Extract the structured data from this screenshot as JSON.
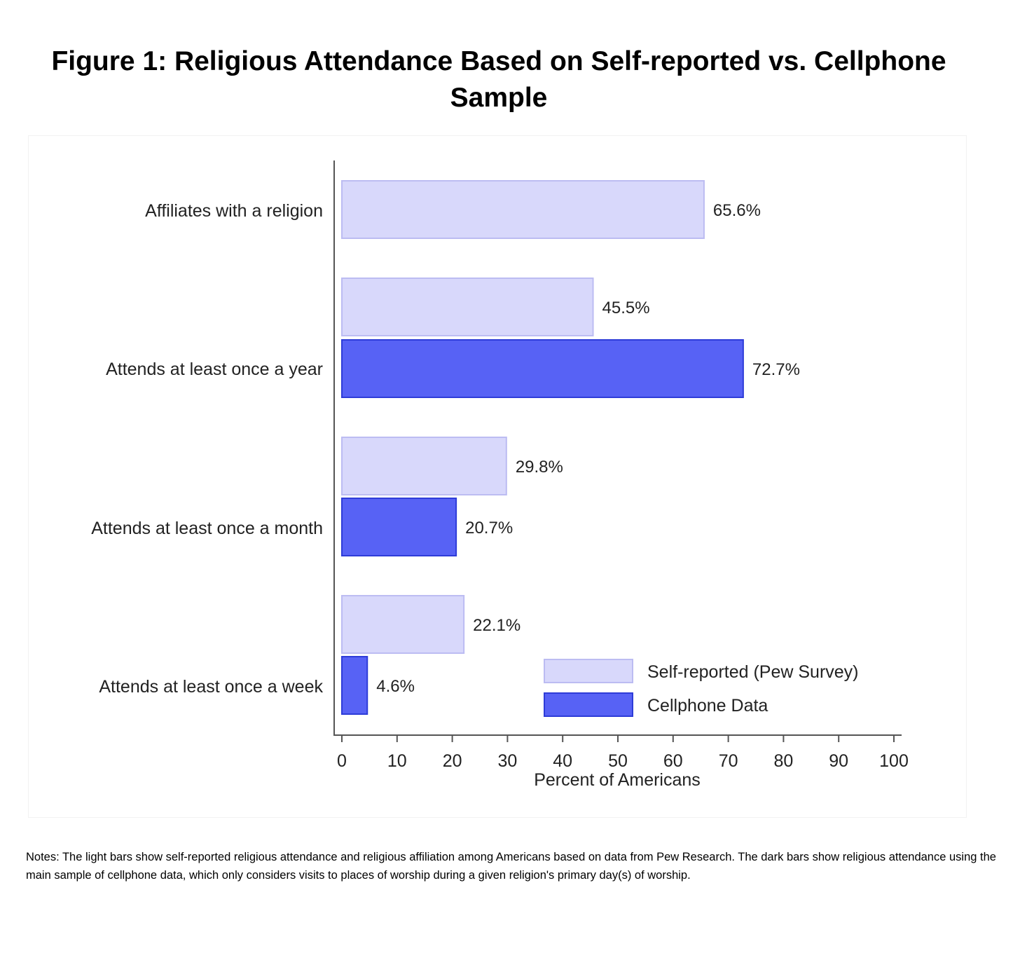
{
  "figure": {
    "title": "Figure 1: Religious Attendance Based on Self-reported vs. Cellphone Sample",
    "notes": "Notes: The light bars show self-reported religious attendance and religious affiliation among Americans based on data from Pew Research. The dark bars show religious attendance using the main sample of cellphone data, which only considers visits to places of worship during a given religion's primary day(s) of worship."
  },
  "chart_data": {
    "type": "bar",
    "orientation": "horizontal",
    "title": "Figure 1: Religious Attendance Based on Self-reported vs. Cellphone Sample",
    "xlabel": "Percent of Americans",
    "ylabel": "",
    "xlim": [
      0,
      100
    ],
    "xticks": [
      0,
      10,
      20,
      30,
      40,
      50,
      60,
      70,
      80,
      90,
      100
    ],
    "grid": false,
    "legend_position": "bottom-right",
    "categories": [
      "Affiliates with a religion",
      "Attends at least once a year",
      "Attends at least once a month",
      "Attends at least once a week"
    ],
    "series": [
      {
        "name": "Self-reported (Pew Survey)",
        "color": "#d8d8fb",
        "stroke": "#bcbcf2",
        "values": [
          65.6,
          45.5,
          29.8,
          22.1
        ],
        "labels": [
          "65.6%",
          "45.5%",
          "29.8%",
          "22.1%"
        ]
      },
      {
        "name": "Cellphone Data",
        "color": "#5762f5",
        "stroke": "#2e3cd8",
        "values": [
          null,
          72.7,
          20.7,
          4.6
        ],
        "labels": [
          null,
          "72.7%",
          "20.7%",
          "4.6%"
        ]
      }
    ]
  }
}
